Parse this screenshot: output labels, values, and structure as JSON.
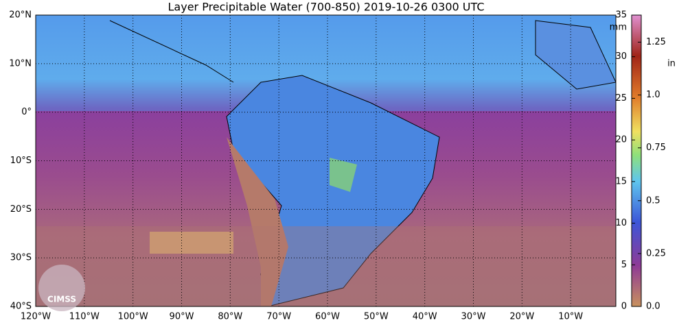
{
  "title": "Layer Precipitable Water (700-850)  2019-10-26 0300 UTC",
  "map": {
    "lat_labels": [
      "20°N",
      "10°N",
      "0°",
      "10°S",
      "20°S",
      "30°S",
      "40°S"
    ],
    "lon_labels": [
      "120°W",
      "110°W",
      "100°W",
      "90°W",
      "80°W",
      "70°W",
      "60°W",
      "50°W",
      "40°W",
      "30°W",
      "20°W",
      "10°W"
    ]
  },
  "colorbar": {
    "mm_unit": "mm",
    "mm_lim": [
      0,
      35
    ],
    "mm_ticks": [
      0,
      5,
      10,
      15,
      20,
      25,
      30,
      35
    ],
    "in_unit": "in",
    "in_lim": [
      0,
      1.378
    ],
    "in_ticks": [
      {
        "value": 0,
        "label": "0.0"
      },
      0.25,
      0.5,
      0.75,
      {
        "value": 1,
        "label": "1.0"
      },
      1.25
    ]
  },
  "logo": {
    "text": "CIMSS"
  }
}
